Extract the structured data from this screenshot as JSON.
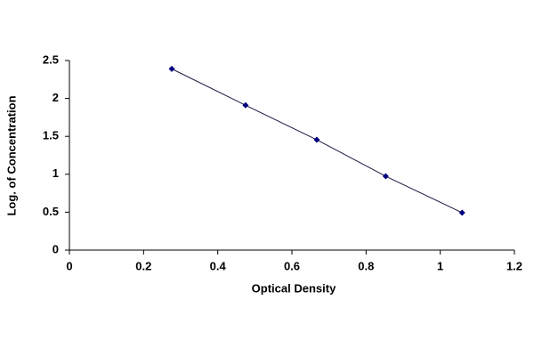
{
  "chart_data": {
    "type": "line",
    "x": [
      0.276,
      0.475,
      0.667,
      0.853,
      1.059
    ],
    "values": [
      2.39,
      1.91,
      1.455,
      0.974,
      0.493
    ],
    "color": "#000080",
    "xlabel": "Optical Density",
    "ylabel": "Log. of Concentration",
    "xlim": [
      0,
      1.2
    ],
    "xticks": [
      0,
      0.2,
      0.4,
      0.6,
      0.8,
      1,
      1.2
    ],
    "ylim": [
      0,
      2.5
    ],
    "yticks": [
      0,
      0.5,
      1,
      1.5,
      2,
      2.5
    ],
    "grid": false
  }
}
